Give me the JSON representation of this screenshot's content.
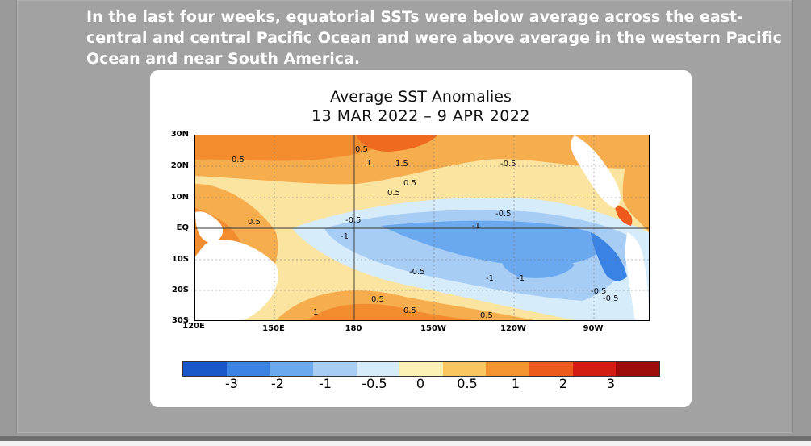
{
  "caption": "In the last four weeks, equatorial SSTs were below average across the east-central and central Pacific Ocean and were above average in the western Pacific Ocean and near South America.",
  "map": {
    "title": "Average SST Anomalies",
    "dates": "13 MAR 2022 – 9 APR 2022",
    "lat_labels": [
      "30N",
      "20N",
      "10N",
      "EQ",
      "10S",
      "20S",
      "30S"
    ],
    "lon_labels": [
      "120E",
      "150E",
      "180",
      "150W",
      "120W",
      "90W"
    ],
    "contour_labels": [
      "0.5",
      "0.5",
      "0.5",
      "1",
      "1.5",
      "0.5",
      "0.5",
      "-0.5",
      "-0.5",
      "-1",
      "-1",
      "-0.5",
      "-0.5",
      "-1",
      "-1",
      "0.5",
      "0.5",
      "-0.5",
      "-0.5",
      "1",
      "0.5"
    ],
    "colorbar": {
      "colors": [
        "#1a57c9",
        "#3b82e5",
        "#6aa8f0",
        "#a8cdf5",
        "#d6ecfb",
        "#fdf2b5",
        "#f9c660",
        "#f4932f",
        "#ee5a1c",
        "#d41d12",
        "#9c0c08"
      ],
      "labels": [
        "-3",
        "-2",
        "-1",
        "-0.5",
        "0",
        "0.5",
        "1",
        "2",
        "3"
      ]
    }
  }
}
